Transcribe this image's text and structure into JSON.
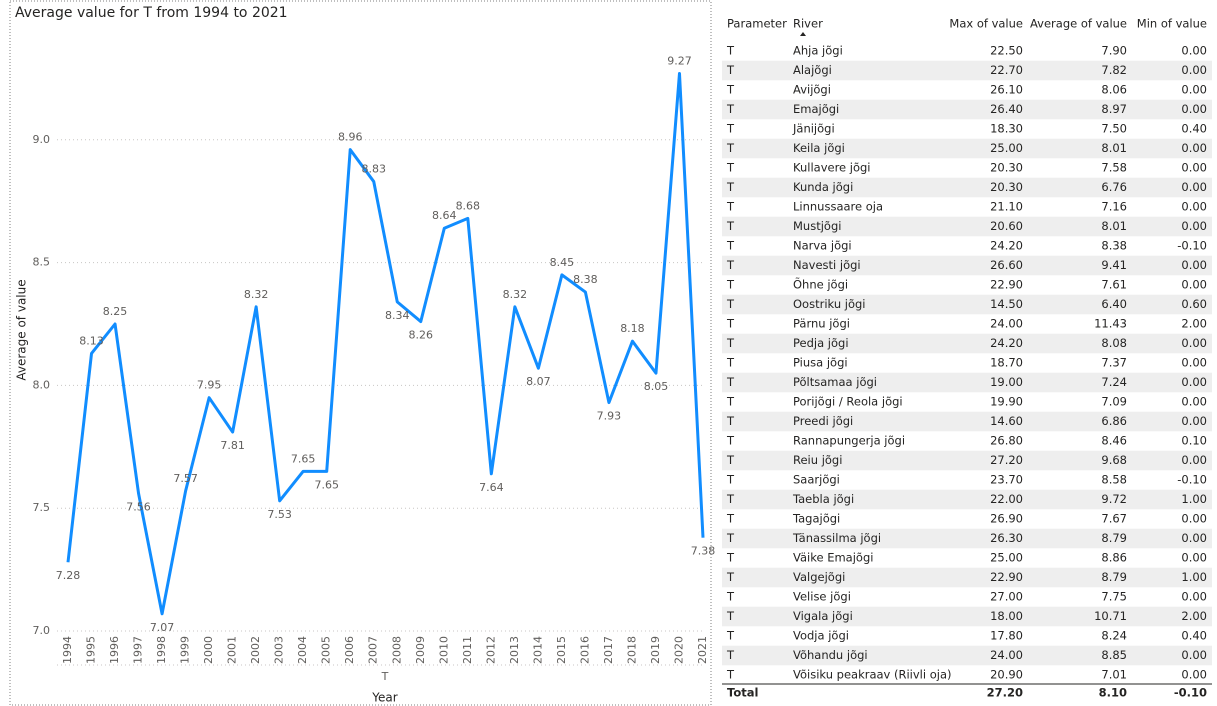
{
  "chart_data": {
    "type": "line",
    "title": "Average value for T from 1994 to 2021",
    "x_label": "Year",
    "x_group_label": "T",
    "y_label": "Average of value",
    "categories": [
      "1994",
      "1995",
      "1996",
      "1997",
      "1998",
      "1999",
      "2000",
      "2001",
      "2002",
      "2003",
      "2004",
      "2005",
      "2006",
      "2007",
      "2008",
      "2009",
      "2010",
      "2011",
      "2012",
      "2013",
      "2014",
      "2015",
      "2016",
      "2017",
      "2018",
      "2019",
      "2020",
      "2021"
    ],
    "values": [
      7.28,
      8.13,
      8.25,
      7.56,
      7.07,
      7.57,
      7.95,
      7.81,
      8.32,
      7.53,
      7.65,
      7.65,
      8.96,
      8.83,
      8.34,
      8.26,
      8.64,
      8.68,
      7.64,
      8.32,
      8.07,
      8.45,
      8.38,
      7.93,
      8.18,
      8.05,
      9.27,
      7.38
    ],
    "color": "#118dff",
    "ylim": [
      7.0,
      9.5
    ],
    "yticks": [
      {
        "value": 7,
        "label": "7.0"
      },
      7.5,
      {
        "value": 8,
        "label": "8.0"
      },
      8.5,
      {
        "value": 9,
        "label": "9.0"
      }
    ],
    "grid": true
  },
  "table": {
    "columns": [
      "Parameter",
      "River",
      "Max of value",
      "Average of value",
      "Min of value"
    ],
    "rows": [
      [
        "T",
        "Ahja jõgi",
        "22.50",
        "7.90",
        "0.00"
      ],
      [
        "T",
        "Alajõgi",
        "22.70",
        "7.82",
        "0.00"
      ],
      [
        "T",
        "Avijõgi",
        "26.10",
        "8.06",
        "0.00"
      ],
      [
        "T",
        "Emajõgi",
        "26.40",
        "8.97",
        "0.00"
      ],
      [
        "T",
        "Jänijõgi",
        "18.30",
        "7.50",
        "0.40"
      ],
      [
        "T",
        "Keila jõgi",
        "25.00",
        "8.01",
        "0.00"
      ],
      [
        "T",
        "Kullavere jõgi",
        "20.30",
        "7.58",
        "0.00"
      ],
      [
        "T",
        "Kunda jõgi",
        "20.30",
        "6.76",
        "0.00"
      ],
      [
        "T",
        "Linnussaare oja",
        "21.10",
        "7.16",
        "0.00"
      ],
      [
        "T",
        "Mustjõgi",
        "20.60",
        "8.01",
        "0.00"
      ],
      [
        "T",
        "Narva jõgi",
        "24.20",
        "8.38",
        "-0.10"
      ],
      [
        "T",
        "Navesti jõgi",
        "26.60",
        "9.41",
        "0.00"
      ],
      [
        "T",
        "Õhne jõgi",
        "22.90",
        "7.61",
        "0.00"
      ],
      [
        "T",
        "Oostriku jõgi",
        "14.50",
        "6.40",
        "0.60"
      ],
      [
        "T",
        "Pärnu jõgi",
        "24.00",
        "11.43",
        "2.00"
      ],
      [
        "T",
        "Pedja jõgi",
        "24.20",
        "8.08",
        "0.00"
      ],
      [
        "T",
        "Piusa jõgi",
        "18.70",
        "7.37",
        "0.00"
      ],
      [
        "T",
        "Põltsamaa jõgi",
        "19.00",
        "7.24",
        "0.00"
      ],
      [
        "T",
        "Porijõgi / Reola jõgi",
        "19.90",
        "7.09",
        "0.00"
      ],
      [
        "T",
        "Preedi jõgi",
        "14.60",
        "6.86",
        "0.00"
      ],
      [
        "T",
        "Rannapungerja jõgi",
        "26.80",
        "8.46",
        "0.10"
      ],
      [
        "T",
        "Reiu jõgi",
        "27.20",
        "9.68",
        "0.00"
      ],
      [
        "T",
        "Saarjõgi",
        "23.70",
        "8.58",
        "-0.10"
      ],
      [
        "T",
        "Taebla jõgi",
        "22.00",
        "9.72",
        "1.00"
      ],
      [
        "T",
        "Tagajõgi",
        "26.90",
        "7.67",
        "0.00"
      ],
      [
        "T",
        "Tänassilma jõgi",
        "26.30",
        "8.79",
        "0.00"
      ],
      [
        "T",
        "Väike Emajõgi",
        "25.00",
        "8.86",
        "0.00"
      ],
      [
        "T",
        "Valgejõgi",
        "22.90",
        "8.79",
        "1.00"
      ],
      [
        "T",
        "Velise jõgi",
        "27.00",
        "7.75",
        "0.00"
      ],
      [
        "T",
        "Vigala jõgi",
        "18.00",
        "10.71",
        "2.00"
      ],
      [
        "T",
        "Vodja jõgi",
        "17.80",
        "8.24",
        "0.40"
      ],
      [
        "T",
        "Võhandu jõgi",
        "24.00",
        "8.85",
        "0.00"
      ],
      [
        "T",
        "Võisiku peakraav (Riivli oja)",
        "20.90",
        "7.01",
        "0.00"
      ]
    ],
    "total": [
      "Total",
      "27.20",
      "8.10",
      "-0.10"
    ]
  }
}
